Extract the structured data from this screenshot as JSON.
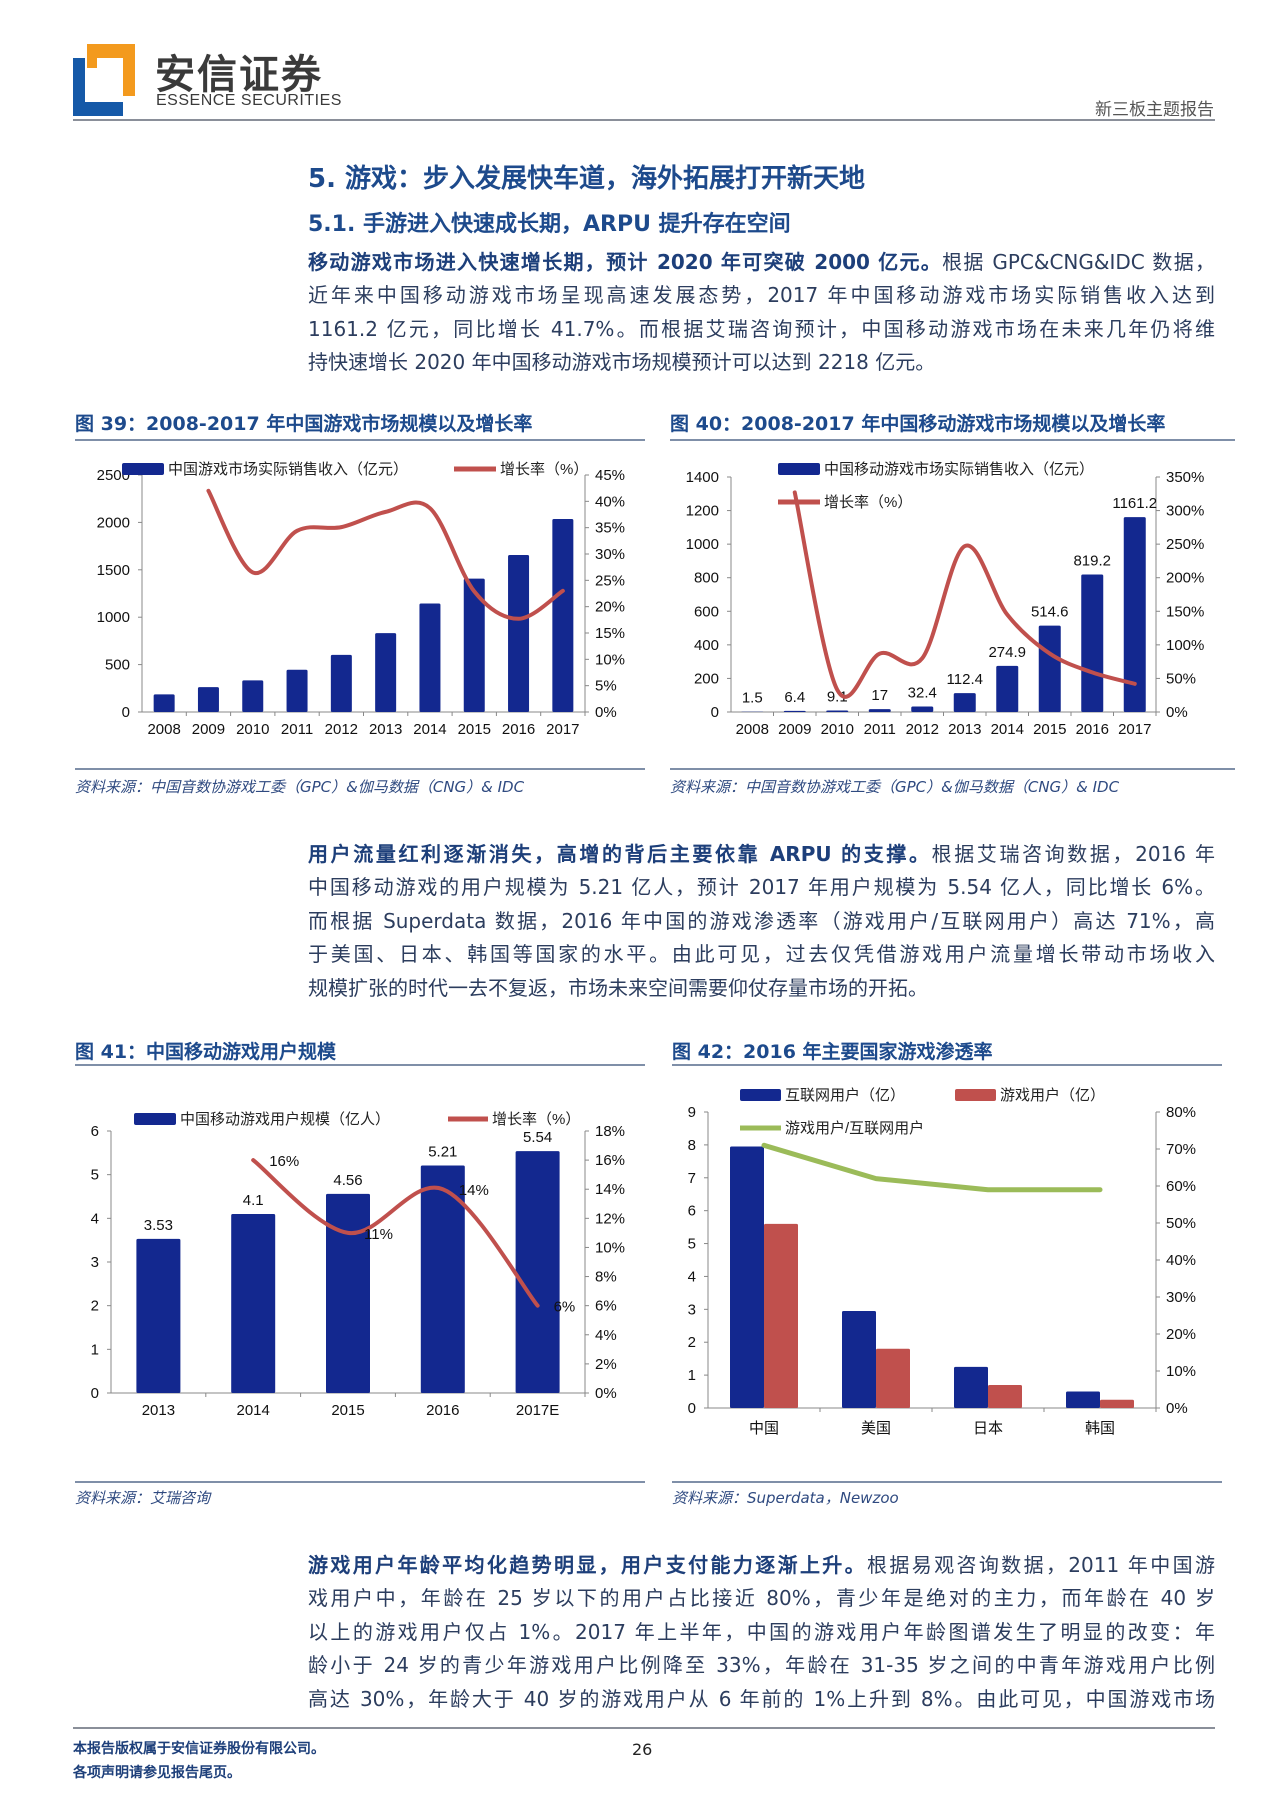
{
  "header": {
    "logo_cn": "安信证券",
    "logo_en": "ESSENCE SECURITIES",
    "report_type": "新三板主题报告",
    "logo_colors": {
      "blue": "#1559a8",
      "orange": "#f39a1e"
    }
  },
  "section": {
    "title": "5. 游戏：步入发展快车道，海外拓展打开新天地",
    "subtitle": "5.1. 手游进入快速成长期，ARPU 提升存在空间"
  },
  "paragraphs": [
    {
      "lead": "移动游戏市场进入快速增长期，预计 2020 年可突破 2000 亿元。",
      "lines": [
        "根据 GPC&CNG&IDC 数据，",
        "近年来中国移动游戏市场呈现高速发展态势，2017 年中国移动游戏市场实际销售收入达到",
        "1161.2 亿元，同比增长 41.7%。而根据艾瑞咨询预计，中国移动游戏市场在未来几年仍将维",
        "持快速增长 2020 年中国移动游戏市场规模预计可以达到 2218 亿元。"
      ]
    },
    {
      "lead": "用户流量红利逐渐消失，高增的背后主要依靠 ARPU 的支撑。",
      "lines": [
        "根据艾瑞咨询数据，2016 年",
        "中国移动游戏的用户规模为 5.21 亿人，预计 2017 年用户规模为 5.54 亿人，同比增长 6%。",
        "而根据 Superdata 数据，2016 年中国的游戏渗透率（游戏用户/互联网用户）高达 71%，高",
        "于美国、日本、韩国等国家的水平。由此可见，过去仅凭借游戏用户流量增长带动市场收入",
        "规模扩张的时代一去不复返，市场未来空间需要仰仗存量市场的开拓。"
      ]
    },
    {
      "lead": "游戏用户年龄平均化趋势明显，用户支付能力逐渐上升。",
      "lines": [
        "根据易观咨询数据，2011 年中国游",
        "戏用户中，年龄在 25 岁以下的用户占比接近 80%，青少年是绝对的主力，而年龄在 40 岁",
        "以上的游戏用户仅占 1%。2017 年上半年，中国的游戏用户年龄图谱发生了明显的改变：年",
        "龄小于 24 岁的青少年游戏用户比例降至 33%，年龄在 31-35 岁之间的中青年游戏用户比例",
        "高达 30%，年龄大于 40 岁的游戏用户从 6 年前的 1%上升到 8%。由此可见，中国游戏市场"
      ]
    }
  ],
  "figures": [
    {
      "title": "图 39：2008-2017 年中国游戏市场规模以及增长率",
      "source": "资料来源：中国音数协游戏工委（GPC）&伽马数据（CNG）& IDC"
    },
    {
      "title": "图 40：2008-2017 年中国移动游戏市场规模以及增长率",
      "source": "资料来源：中国音数协游戏工委（GPC）&伽马数据（CNG）& IDC"
    },
    {
      "title": "图 41：中国移动游戏用户规模",
      "source": "资料来源：艾瑞咨询"
    },
    {
      "title": "图 42：2016 年主要国家游戏渗透率",
      "source": "资料来源：Superdata，Newzoo"
    }
  ],
  "chart_data": [
    {
      "type": "bar+line",
      "categories": [
        "2008",
        "2009",
        "2010",
        "2011",
        "2012",
        "2013",
        "2014",
        "2015",
        "2016",
        "2017"
      ],
      "series": [
        {
          "name": "中国游戏市场实际销售收入（亿元）",
          "type": "bar",
          "axis": "left",
          "color": "#13288f",
          "values": [
            186,
            263,
            333,
            446,
            603,
            832,
            1145,
            1407,
            1656,
            2036
          ]
        },
        {
          "name": "增长率（%）",
          "type": "line",
          "axis": "right",
          "color": "#c0504d",
          "values": [
            null,
            42,
            26.5,
            34.4,
            35.1,
            38,
            38.7,
            22.9,
            17.7,
            23
          ]
        }
      ],
      "left_axis": {
        "min": 0,
        "max": 2500,
        "step": 500,
        "ticks": [
          "0",
          "500",
          "1000",
          "1500",
          "2000",
          "2500"
        ]
      },
      "right_axis": {
        "min": 0,
        "max": 45,
        "step": 5,
        "ticks": [
          "0%",
          "5%",
          "10%",
          "15%",
          "20%",
          "25%",
          "30%",
          "35%",
          "40%",
          "45%"
        ]
      },
      "legend": "top",
      "grid": false
    },
    {
      "type": "bar+line",
      "categories": [
        "2008",
        "2009",
        "2010",
        "2011",
        "2012",
        "2013",
        "2014",
        "2015",
        "2016",
        "2017"
      ],
      "series": [
        {
          "name": "中国移动游戏市场实际销售收入（亿元）",
          "type": "bar",
          "axis": "left",
          "color": "#13288f",
          "values": [
            1.5,
            6.4,
            9.1,
            17,
            32.4,
            112.4,
            274.9,
            514.6,
            819.2,
            1161.2
          ],
          "labels": [
            "1.5",
            "6.4",
            "9.1",
            "17",
            "32.4",
            "112.4",
            "274.9",
            "514.6",
            "819.2",
            "1161.2"
          ]
        },
        {
          "name": "增长率（%）",
          "type": "line",
          "axis": "right",
          "color": "#c0504d",
          "values": [
            null,
            327,
            33,
            87,
            80,
            247,
            145,
            87,
            59,
            42
          ]
        }
      ],
      "left_axis": {
        "min": 0,
        "max": 1400,
        "step": 200,
        "ticks": [
          "0",
          "200",
          "400",
          "600",
          "800",
          "1000",
          "1200",
          "1400"
        ]
      },
      "right_axis": {
        "min": 0,
        "max": 350,
        "step": 50,
        "ticks": [
          "0%",
          "50%",
          "100%",
          "150%",
          "200%",
          "250%",
          "300%",
          "350%"
        ]
      },
      "legend": "top",
      "grid": false
    },
    {
      "type": "bar+line",
      "categories": [
        "2013",
        "2014",
        "2015",
        "2016",
        "2017E"
      ],
      "series": [
        {
          "name": "中国移动游戏用户规模（亿人）",
          "type": "bar",
          "axis": "left",
          "color": "#13288f",
          "values": [
            3.53,
            4.1,
            4.56,
            5.21,
            5.54
          ],
          "labels": [
            "3.53",
            "4.1",
            "4.56",
            "5.21",
            "5.54"
          ]
        },
        {
          "name": "增长率（%）",
          "type": "line",
          "axis": "right",
          "color": "#c0504d",
          "values": [
            null,
            16,
            11,
            14,
            6
          ],
          "labels": [
            null,
            "16%",
            "11%",
            "14%",
            "6%"
          ]
        }
      ],
      "left_axis": {
        "min": 0,
        "max": 6,
        "step": 1,
        "ticks": [
          "0",
          "1",
          "2",
          "3",
          "4",
          "5",
          "6"
        ]
      },
      "right_axis": {
        "min": 0,
        "max": 18,
        "step": 2,
        "ticks": [
          "0%",
          "2%",
          "4%",
          "6%",
          "8%",
          "10%",
          "12%",
          "14%",
          "16%",
          "18%"
        ]
      },
      "legend": "top",
      "grid": false
    },
    {
      "type": "grouped-bar+line",
      "categories": [
        "中国",
        "美国",
        "日本",
        "韩国"
      ],
      "series": [
        {
          "name": "互联网用户（亿）",
          "type": "bar",
          "axis": "left",
          "color": "#13288f",
          "values": [
            7.95,
            2.95,
            1.25,
            0.5
          ]
        },
        {
          "name": "游戏用户（亿）",
          "type": "bar",
          "axis": "left",
          "color": "#c0504d",
          "values": [
            5.6,
            1.8,
            0.7,
            0.25
          ]
        },
        {
          "name": "游戏用户/互联网用户",
          "type": "line",
          "axis": "right",
          "color": "#9bbb59",
          "values": [
            71,
            62,
            59,
            59
          ]
        }
      ],
      "left_axis": {
        "min": 0,
        "max": 9,
        "step": 1,
        "ticks": [
          "0",
          "1",
          "2",
          "3",
          "4",
          "5",
          "6",
          "7",
          "8",
          "9"
        ]
      },
      "right_axis": {
        "min": 0,
        "max": 80,
        "step": 10,
        "ticks": [
          "0%",
          "10%",
          "20%",
          "30%",
          "40%",
          "50%",
          "60%",
          "70%",
          "80%"
        ]
      },
      "legend": "top",
      "grid": false
    }
  ],
  "footer": {
    "copyright": "本报告版权属于安信证券股份有限公司。",
    "disclaimer": "各项声明请参见报告尾页。",
    "page_number": "26"
  }
}
